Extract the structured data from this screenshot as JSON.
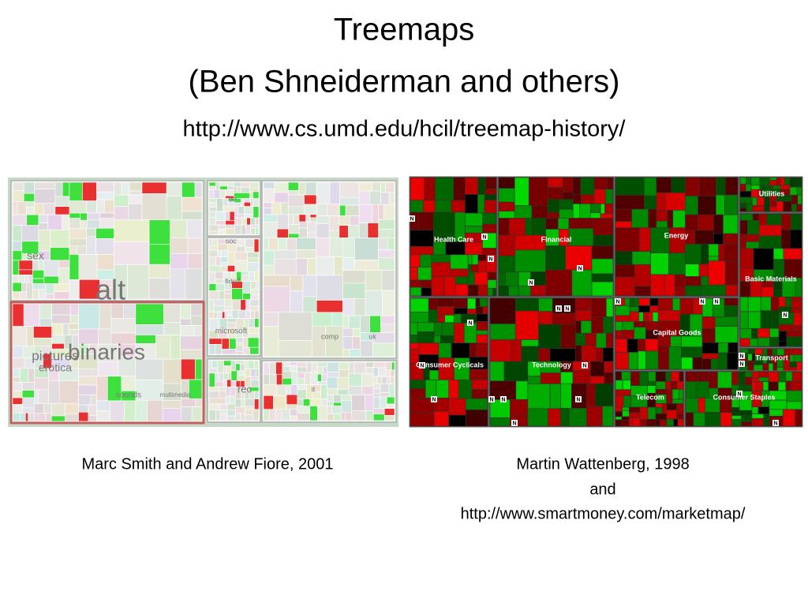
{
  "header": {
    "title": "Treemaps",
    "subtitle": "(Ben Shneiderman and others)",
    "url": "http://www.cs.umd.edu/hcil/treemap-history/"
  },
  "left_figure": {
    "labels": [
      "sex",
      "alt",
      "binaries",
      "pictures",
      "erotica",
      "sounds",
      "multimedia",
      "rec",
      "comp",
      "soc",
      "microsoft",
      "fido7",
      "uk",
      "it",
      "de"
    ],
    "caption": "Marc Smith and Andrew Fiore, 2001"
  },
  "right_figure": {
    "sectors": [
      "Health Care",
      "Financial",
      "Energy",
      "Utilities",
      "Basic Materials",
      "Capital Goods",
      "Consumer Cyclicals",
      "Technology",
      "Transport",
      "Telecom",
      "Consumer Staples"
    ],
    "marker": "N",
    "caption": [
      "Martin Wattenberg, 1998",
      "and",
      "http://www.smartmoney.com/marketmap/"
    ]
  }
}
